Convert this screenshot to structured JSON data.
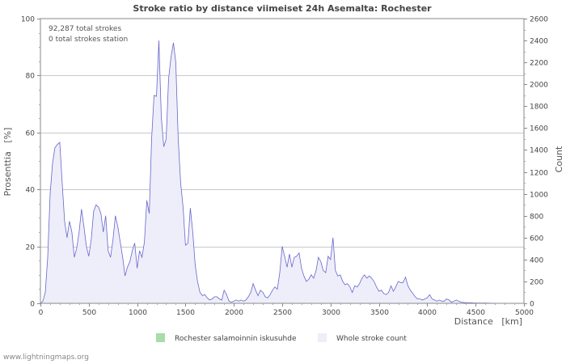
{
  "chart_data": {
    "type": "area",
    "title": "Stroke ratio by distance viimeiset 24h Asemalta: Rochester",
    "annotations": [
      "92,287 total strokes",
      "0 total strokes station"
    ],
    "xlabel": "Distance   [km]",
    "ylabel_left": "Prosenttia   [%]",
    "ylabel_right": "Count",
    "xlim": [
      0,
      5000
    ],
    "ylim_left": [
      0,
      100
    ],
    "ylim_right": [
      0,
      2600
    ],
    "x_ticks": [
      0,
      500,
      1000,
      1500,
      2000,
      2500,
      3000,
      3500,
      4000,
      4500,
      5000
    ],
    "y_ticks_left": [
      0,
      20,
      40,
      60,
      80,
      100
    ],
    "y_ticks_right": [
      0,
      200,
      400,
      600,
      800,
      1000,
      1200,
      1400,
      1600,
      1800,
      2000,
      2200,
      2400,
      2600
    ],
    "grid": true,
    "legend_position": "bottom",
    "series": [
      {
        "name": "Rochester salamoinnin iskusuhde",
        "axis": "left",
        "color": "#a8dca8",
        "points": []
      },
      {
        "name": "Whole stroke count",
        "axis": "right",
        "color": "#6666cc",
        "fill": "#eeeefa",
        "points": [
          [
            0,
            0
          ],
          [
            25,
            20
          ],
          [
            50,
            100
          ],
          [
            75,
            420
          ],
          [
            100,
            1000
          ],
          [
            125,
            1280
          ],
          [
            150,
            1420
          ],
          [
            175,
            1450
          ],
          [
            200,
            1470
          ],
          [
            225,
            1100
          ],
          [
            250,
            750
          ],
          [
            275,
            600
          ],
          [
            300,
            750
          ],
          [
            325,
            650
          ],
          [
            350,
            420
          ],
          [
            375,
            500
          ],
          [
            400,
            650
          ],
          [
            425,
            860
          ],
          [
            450,
            700
          ],
          [
            475,
            520
          ],
          [
            500,
            430
          ],
          [
            525,
            580
          ],
          [
            550,
            840
          ],
          [
            575,
            900
          ],
          [
            600,
            880
          ],
          [
            625,
            820
          ],
          [
            650,
            650
          ],
          [
            675,
            800
          ],
          [
            700,
            480
          ],
          [
            725,
            420
          ],
          [
            750,
            580
          ],
          [
            775,
            800
          ],
          [
            800,
            700
          ],
          [
            825,
            560
          ],
          [
            850,
            420
          ],
          [
            875,
            250
          ],
          [
            900,
            330
          ],
          [
            925,
            380
          ],
          [
            950,
            480
          ],
          [
            975,
            550
          ],
          [
            1000,
            320
          ],
          [
            1025,
            480
          ],
          [
            1050,
            420
          ],
          [
            1075,
            560
          ],
          [
            1100,
            940
          ],
          [
            1125,
            820
          ],
          [
            1150,
            1500
          ],
          [
            1175,
            1900
          ],
          [
            1200,
            1890
          ],
          [
            1225,
            2400
          ],
          [
            1250,
            1700
          ],
          [
            1275,
            1430
          ],
          [
            1300,
            1500
          ],
          [
            1325,
            2050
          ],
          [
            1350,
            2250
          ],
          [
            1375,
            2380
          ],
          [
            1400,
            2200
          ],
          [
            1425,
            1500
          ],
          [
            1450,
            1100
          ],
          [
            1475,
            880
          ],
          [
            1500,
            530
          ],
          [
            1525,
            550
          ],
          [
            1550,
            870
          ],
          [
            1575,
            650
          ],
          [
            1600,
            350
          ],
          [
            1625,
            200
          ],
          [
            1650,
            100
          ],
          [
            1675,
            70
          ],
          [
            1700,
            80
          ],
          [
            1725,
            50
          ],
          [
            1750,
            30
          ],
          [
            1775,
            40
          ],
          [
            1800,
            60
          ],
          [
            1825,
            60
          ],
          [
            1850,
            40
          ],
          [
            1875,
            30
          ],
          [
            1900,
            120
          ],
          [
            1925,
            80
          ],
          [
            1950,
            20
          ],
          [
            1975,
            10
          ],
          [
            2000,
            20
          ],
          [
            2025,
            30
          ],
          [
            2050,
            20
          ],
          [
            2075,
            30
          ],
          [
            2100,
            20
          ],
          [
            2125,
            30
          ],
          [
            2150,
            60
          ],
          [
            2175,
            100
          ],
          [
            2200,
            180
          ],
          [
            2225,
            120
          ],
          [
            2250,
            70
          ],
          [
            2275,
            120
          ],
          [
            2300,
            100
          ],
          [
            2325,
            60
          ],
          [
            2350,
            50
          ],
          [
            2375,
            80
          ],
          [
            2400,
            120
          ],
          [
            2425,
            150
          ],
          [
            2450,
            130
          ],
          [
            2475,
            280
          ],
          [
            2500,
            520
          ],
          [
            2525,
            430
          ],
          [
            2550,
            330
          ],
          [
            2575,
            450
          ],
          [
            2600,
            330
          ],
          [
            2625,
            420
          ],
          [
            2650,
            430
          ],
          [
            2675,
            460
          ],
          [
            2700,
            320
          ],
          [
            2725,
            250
          ],
          [
            2750,
            200
          ],
          [
            2775,
            220
          ],
          [
            2800,
            260
          ],
          [
            2825,
            230
          ],
          [
            2850,
            300
          ],
          [
            2875,
            420
          ],
          [
            2900,
            380
          ],
          [
            2925,
            300
          ],
          [
            2950,
            280
          ],
          [
            2975,
            430
          ],
          [
            3000,
            400
          ],
          [
            3025,
            600
          ],
          [
            3050,
            300
          ],
          [
            3075,
            250
          ],
          [
            3100,
            260
          ],
          [
            3125,
            200
          ],
          [
            3150,
            170
          ],
          [
            3175,
            180
          ],
          [
            3200,
            150
          ],
          [
            3225,
            100
          ],
          [
            3250,
            160
          ],
          [
            3275,
            150
          ],
          [
            3300,
            180
          ],
          [
            3325,
            230
          ],
          [
            3350,
            260
          ],
          [
            3375,
            230
          ],
          [
            3400,
            250
          ],
          [
            3425,
            230
          ],
          [
            3450,
            200
          ],
          [
            3475,
            150
          ],
          [
            3500,
            110
          ],
          [
            3525,
            120
          ],
          [
            3550,
            90
          ],
          [
            3575,
            80
          ],
          [
            3600,
            100
          ],
          [
            3625,
            160
          ],
          [
            3650,
            110
          ],
          [
            3675,
            150
          ],
          [
            3700,
            200
          ],
          [
            3725,
            190
          ],
          [
            3750,
            190
          ],
          [
            3775,
            240
          ],
          [
            3800,
            160
          ],
          [
            3825,
            120
          ],
          [
            3850,
            90
          ],
          [
            3875,
            60
          ],
          [
            3900,
            40
          ],
          [
            3925,
            40
          ],
          [
            3950,
            30
          ],
          [
            3975,
            40
          ],
          [
            4000,
            50
          ],
          [
            4025,
            80
          ],
          [
            4050,
            40
          ],
          [
            4075,
            30
          ],
          [
            4100,
            20
          ],
          [
            4125,
            30
          ],
          [
            4150,
            20
          ],
          [
            4175,
            20
          ],
          [
            4200,
            40
          ],
          [
            4225,
            30
          ],
          [
            4250,
            10
          ],
          [
            4275,
            20
          ],
          [
            4300,
            30
          ],
          [
            4325,
            20
          ],
          [
            4350,
            10
          ],
          [
            4400,
            5
          ],
          [
            4450,
            5
          ],
          [
            4500,
            3
          ],
          [
            4600,
            2
          ],
          [
            4700,
            1
          ],
          [
            4800,
            1
          ],
          [
            5000,
            0
          ]
        ]
      }
    ]
  },
  "footer": "www.lightningmaps.org"
}
